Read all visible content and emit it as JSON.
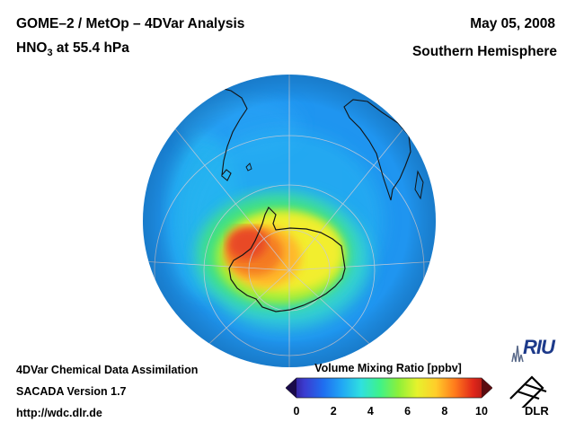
{
  "header": {
    "title": "GOME–2 / MetOp – 4DVar Analysis",
    "species_main": "HNO",
    "species_sub": "3",
    "species_rest": " at 55.4 hPa",
    "date": "May 05, 2008",
    "region": "Southern Hemisphere"
  },
  "footer": {
    "line1": "4DVar Chemical Data Assimilation",
    "line2": "SACADA Version 1.7",
    "line3": "http://wdc.dlr.de"
  },
  "colorbar": {
    "title": "Volume Mixing Ratio [ppbv]",
    "ticks": [
      "0",
      "2",
      "4",
      "6",
      "8",
      "10"
    ],
    "min": 0,
    "max": 10,
    "colors": [
      "#2b0a6e",
      "#3b3cd0",
      "#1f6ef0",
      "#21a8f5",
      "#2fe0e0",
      "#3ef28a",
      "#8cf03a",
      "#e6f22c",
      "#ffcd2a",
      "#ff7b1c",
      "#e0261a",
      "#8e1414"
    ]
  },
  "logos": {
    "riu": "RIU",
    "dlr": "DLR"
  },
  "colors": {
    "ocean_background": "#1f95f0",
    "high_value": "#e84a26",
    "mid_value": "#f2ee2e",
    "low_value": "#38e27a"
  }
}
